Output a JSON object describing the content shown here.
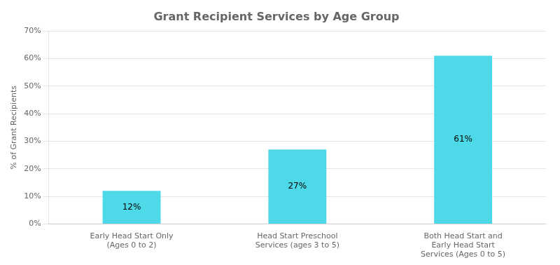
{
  "chart_data": {
    "type": "bar",
    "title": "Grant Recipient Services by Age Group",
    "categories": [
      "Early Head Start Only\n(Ages 0 to 2)",
      "Head Start Preschool\nServices (ages 3 to 5)",
      "Both Head Start and\nEarly Head Start\nServices (Ages 0 to 5)"
    ],
    "values": [
      12,
      27,
      61
    ],
    "value_labels": [
      "12%",
      "27%",
      "61%"
    ],
    "data_labels": true,
    "color": "#4DD9E8",
    "ylabel": "% of Grant Recipients",
    "ylim": [
      0,
      70
    ],
    "yticks": [
      {
        "value": 0,
        "label": "0%"
      },
      {
        "value": 10,
        "label": "10%"
      },
      {
        "value": 20,
        "label": "20%"
      },
      {
        "value": 30,
        "label": "30%"
      },
      {
        "value": 40,
        "label": "40%"
      },
      {
        "value": 50,
        "label": "50%"
      },
      {
        "value": 60,
        "label": "60%"
      },
      {
        "value": 70,
        "label": "70%"
      }
    ],
    "grid": true
  }
}
